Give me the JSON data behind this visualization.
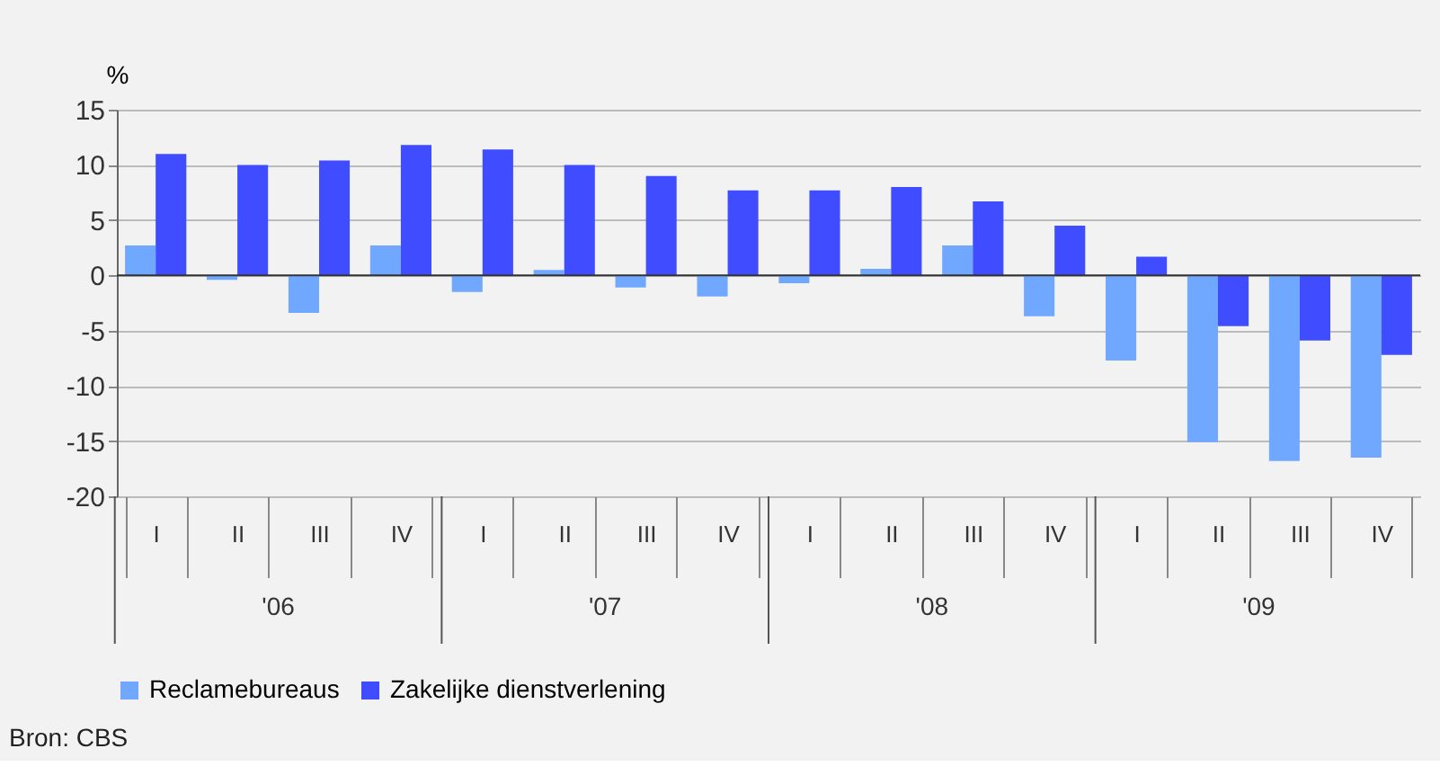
{
  "chart_data": {
    "type": "bar",
    "ylabel": "%",
    "categories": [
      "I",
      "II",
      "III",
      "IV",
      "I",
      "II",
      "III",
      "IV",
      "I",
      "II",
      "III",
      "IV",
      "I",
      "II",
      "III",
      "IV"
    ],
    "series": [
      {
        "name": "Reclamebureaus",
        "color": "#70a8ff",
        "values": [
          2.7,
          -0.4,
          -3.4,
          2.7,
          -1.5,
          0.5,
          -1.1,
          -1.9,
          -0.7,
          0.6,
          2.7,
          -3.7,
          -7.7,
          -15.1,
          -16.8,
          -16.5
        ]
      },
      {
        "name": "Zakelijke dienstverlening",
        "color": "#3f4cff",
        "values": [
          11.0,
          10.0,
          10.4,
          11.8,
          11.4,
          10.0,
          9.0,
          7.7,
          7.7,
          8.0,
          6.7,
          4.5,
          1.7,
          -4.6,
          -5.9,
          -7.2
        ]
      }
    ],
    "ylim": [
      -20,
      15
    ],
    "yticks": [
      -20,
      -15,
      -10,
      -5,
      0,
      5,
      10,
      15
    ],
    "grid": "y",
    "legend": "bottom",
    "annotations": [
      "'06",
      "'07",
      "'08",
      "'09",
      "Bron: CBS"
    ]
  }
}
